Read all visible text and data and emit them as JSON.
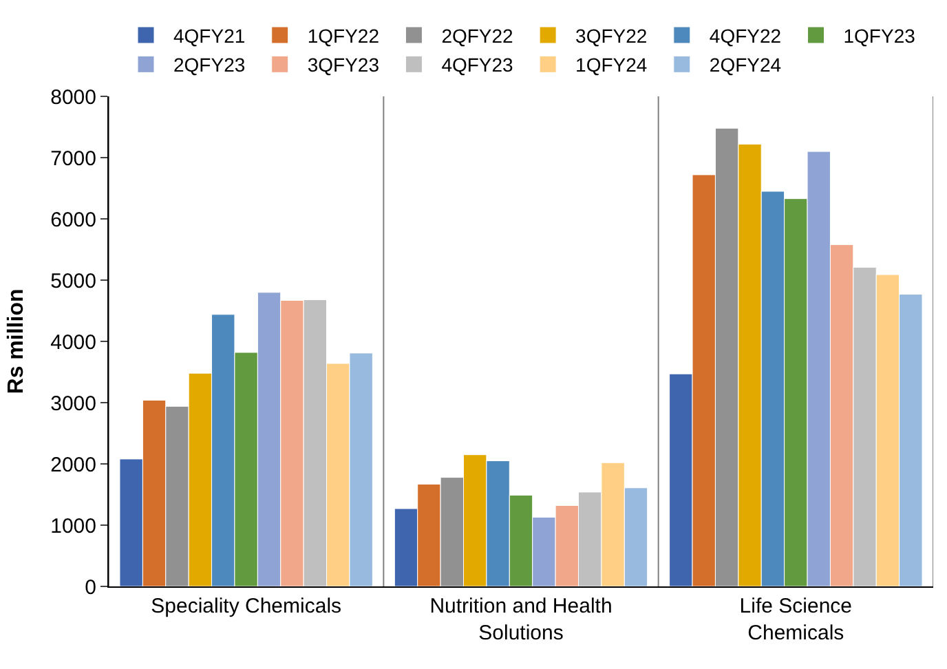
{
  "chart_data": {
    "type": "bar",
    "ylabel": "Rs million",
    "categories": [
      "Speciality Chemicals",
      "Nutrition and Health Solutions",
      "Life Science Chemicals"
    ],
    "series": [
      {
        "name": "4QFY21",
        "color": "#3f65ae",
        "values": [
          2080,
          1270,
          3470
        ]
      },
      {
        "name": "1QFY22",
        "color": "#d46f2b",
        "values": [
          3040,
          1670,
          6720
        ]
      },
      {
        "name": "2QFY22",
        "color": "#919191",
        "values": [
          2940,
          1780,
          7480
        ]
      },
      {
        "name": "3QFY22",
        "color": "#e2aa00",
        "values": [
          3480,
          2150,
          7220
        ]
      },
      {
        "name": "4QFY22",
        "color": "#4e89bd",
        "values": [
          4440,
          2050,
          6450
        ]
      },
      {
        "name": "1QFY23",
        "color": "#629a3f",
        "values": [
          3820,
          1490,
          6330
        ]
      },
      {
        "name": "2QFY23",
        "color": "#8fa4d5",
        "values": [
          4800,
          1130,
          7100
        ]
      },
      {
        "name": "3QFY23",
        "color": "#f0a78a",
        "values": [
          4670,
          1320,
          5580
        ]
      },
      {
        "name": "4QFY23",
        "color": "#bfbfbf",
        "values": [
          4680,
          1540,
          5210
        ]
      },
      {
        "name": "1QFY24",
        "color": "#fecf84",
        "values": [
          3640,
          2020,
          5090
        ]
      },
      {
        "name": "2QFY24",
        "color": "#99badf",
        "values": [
          3810,
          1610,
          4770
        ]
      }
    ],
    "ylim": [
      0,
      8000
    ],
    "yticks": [
      0,
      1000,
      2000,
      3000,
      4000,
      5000,
      6000,
      7000,
      8000
    ],
    "grid": "x",
    "legend": "top"
  }
}
